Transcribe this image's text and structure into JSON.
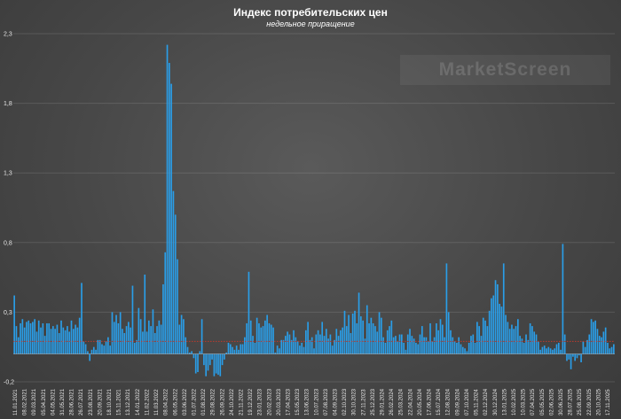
{
  "chart_data": {
    "type": "bar",
    "title": "Индекс потребительских цен",
    "subtitle": "недельное приращение",
    "watermark": "MarketScreen",
    "xlabel": "",
    "ylabel": "",
    "ylim": [
      -0.2,
      2.3
    ],
    "yticks": [
      "-0,2",
      "0,3",
      "0,8",
      "1,3",
      "1,8",
      "2,3"
    ],
    "ytick_values": [
      -0.2,
      0.3,
      0.8,
      1.3,
      1.8,
      2.3
    ],
    "grid": true,
    "legend": "none",
    "bar_color": "#2a9ee8",
    "reference_line": {
      "value": 0.09,
      "color": "#c0392b",
      "style": "dotted"
    },
    "x_tick_labels": [
      "11.01.2021",
      "08.02.2021",
      "09.03.2021",
      "05.04.2021",
      "04.05.2021",
      "31.05.2021",
      "28.06.2021",
      "26.07.2021",
      "23.08.2021",
      "20.09.2021",
      "18.10.2021",
      "15.11.2021",
      "13.12.2021",
      "14.01.2022",
      "11.02.2022",
      "11.03.2022",
      "08.04.2022",
      "06.05.2022",
      "03.06.2022",
      "01.07.2022",
      "01.08.2022",
      "29.08.2022",
      "26.09.2022",
      "24.10.2022",
      "21.11.2022",
      "19.12.2022",
      "23.01.2023",
      "20.02.2023",
      "20.03.2023",
      "17.04.2023",
      "15.05.2023",
      "13.06.2023",
      "10.07.2023",
      "07.08.2023",
      "04.09.2023",
      "02.10.2023",
      "30.10.2023",
      "27.11.2023",
      "25.12.2023",
      "29.01.2024",
      "26.02.2024",
      "25.03.2024",
      "22.04.2024",
      "20.05.2024",
      "17.06.2024",
      "15.07.2024",
      "12.08.2024",
      "09.09.2024",
      "07.10.2024",
      "05.11.2024",
      "02.12.2024",
      "30.12.2024",
      "13.01.2025",
      "10.02.2025",
      "10.03.2025",
      "07.04.2025",
      "05.05.2025",
      "02.06.2025",
      "30.06.2025",
      "28.07.2025",
      "25.08.2025",
      "22.09.2025",
      "20.10.2025",
      "17.11.2025"
    ],
    "values": [
      0.42,
      0.2,
      0.12,
      0.22,
      0.25,
      0.19,
      0.23,
      0.24,
      0.22,
      0.23,
      0.25,
      0.16,
      0.24,
      0.19,
      0.22,
      0.13,
      0.22,
      0.22,
      0.18,
      0.2,
      0.18,
      0.21,
      0.15,
      0.24,
      0.19,
      0.17,
      0.2,
      0.16,
      0.24,
      0.18,
      0.21,
      0.19,
      0.26,
      0.51,
      0.09,
      0.07,
      0.02,
      -0.05,
      0.03,
      0.05,
      0.03,
      0.1,
      0.1,
      0.07,
      0.06,
      0.09,
      0.12,
      0.06,
      0.3,
      0.23,
      0.28,
      0.22,
      0.3,
      0.18,
      0.15,
      0.2,
      0.23,
      0.19,
      0.49,
      0.08,
      0.1,
      0.33,
      0.25,
      0.16,
      0.57,
      0.16,
      0.24,
      0.2,
      0.32,
      0.15,
      0.2,
      0.24,
      0.21,
      0.5,
      0.73,
      2.22,
      2.09,
      1.94,
      1.17,
      1.0,
      0.68,
      0.21,
      0.28,
      0.25,
      0.12,
      0.05,
      0.01,
      0.02,
      -0.03,
      -0.14,
      -0.13,
      0.02,
      0.25,
      -0.08,
      -0.16,
      -0.12,
      -0.08,
      -0.04,
      -0.16,
      -0.14,
      -0.15,
      -0.16,
      -0.08,
      -0.04,
      0.01,
      0.08,
      0.07,
      0.05,
      0.03,
      0.06,
      0.03,
      0.07,
      0.07,
      0.12,
      0.22,
      0.59,
      0.24,
      0.13,
      0.08,
      0.26,
      0.22,
      0.19,
      0.2,
      0.24,
      0.28,
      0.22,
      0.21,
      0.19,
      0.01,
      0.06,
      0.04,
      0.1,
      0.1,
      0.13,
      0.16,
      0.14,
      0.1,
      0.17,
      0.12,
      0.09,
      0.06,
      0.08,
      0.05,
      0.17,
      0.23,
      0.1,
      0.12,
      0.04,
      0.14,
      0.17,
      0.14,
      0.23,
      0.13,
      0.18,
      0.11,
      0.14,
      0.06,
      0.1,
      0.18,
      0.13,
      0.17,
      0.19,
      0.31,
      0.2,
      0.28,
      0.15,
      0.29,
      0.31,
      0.22,
      0.44,
      0.27,
      0.24,
      0.11,
      0.35,
      0.22,
      0.26,
      0.22,
      0.2,
      0.16,
      0.3,
      0.26,
      0.12,
      0.08,
      0.17,
      0.2,
      0.24,
      0.12,
      0.13,
      0.09,
      0.14,
      0.14,
      0.08,
      0.03,
      0.14,
      0.18,
      0.13,
      0.11,
      0.08,
      0.07,
      0.14,
      0.2,
      0.12,
      0.12,
      0.09,
      0.22,
      0.09,
      0.12,
      0.22,
      0.17,
      0.25,
      0.21,
      0.12,
      0.65,
      0.3,
      0.17,
      0.12,
      0.09,
      0.08,
      0.12,
      0.07,
      0.05,
      0.04,
      0.02,
      0.08,
      0.13,
      0.14,
      0.08,
      0.23,
      0.2,
      0.13,
      0.26,
      0.24,
      0.2,
      0.31,
      0.4,
      0.42,
      0.53,
      0.5,
      0.36,
      0.34,
      0.65,
      0.28,
      0.23,
      0.18,
      0.21,
      0.18,
      0.2,
      0.25,
      0.13,
      0.11,
      0.08,
      0.14,
      0.1,
      0.22,
      0.2,
      0.16,
      0.14,
      0.09,
      0.03,
      0.05,
      0.06,
      0.04,
      0.05,
      0.04,
      0.03,
      0.04,
      0.07,
      0.08,
      0.03,
      0.79,
      0.14,
      -0.05,
      -0.04,
      -0.11,
      -0.02,
      -0.05,
      -0.03,
      -0.01,
      -0.06,
      0.09,
      0.05,
      0.1,
      0.14,
      0.25,
      0.23,
      0.24,
      0.18,
      0.13,
      0.12,
      0.16,
      0.19,
      0.08,
      0.04,
      0.05,
      0.07
    ]
  }
}
